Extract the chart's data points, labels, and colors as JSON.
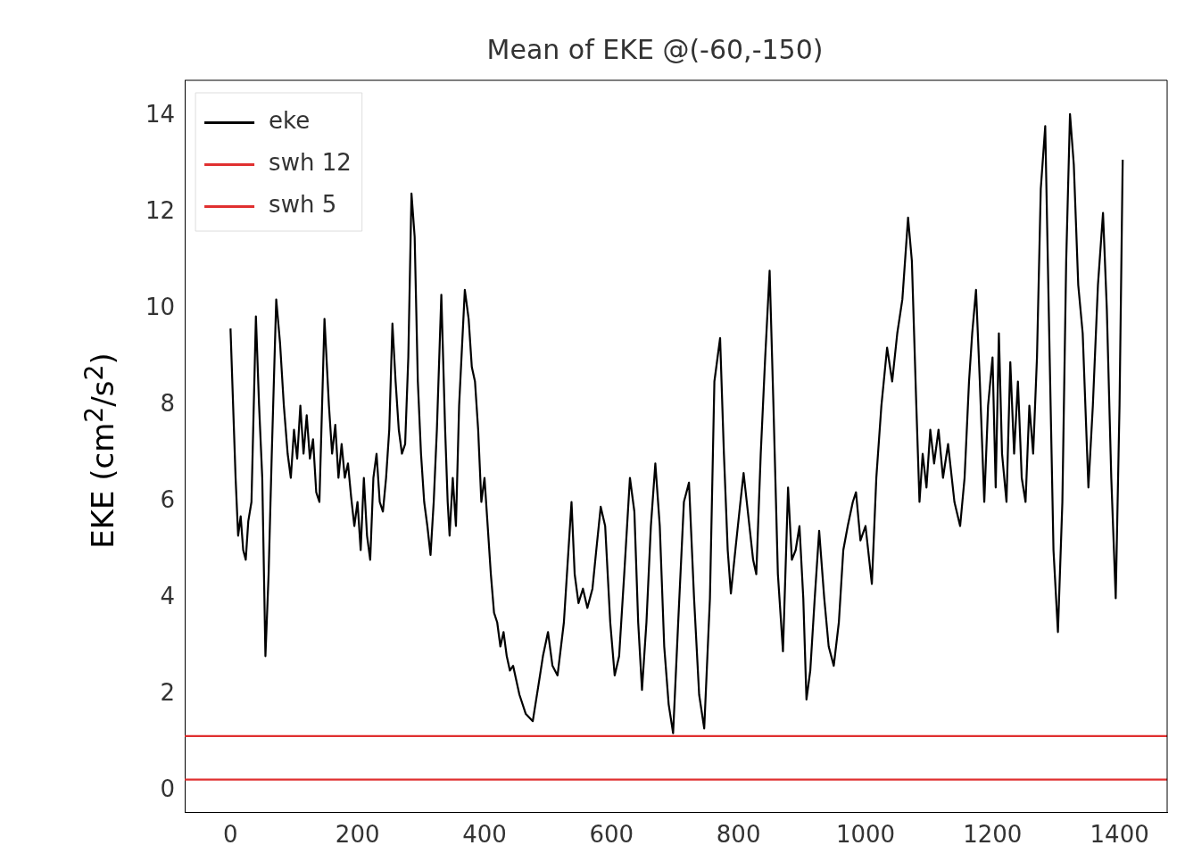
{
  "chart_data": {
    "type": "line",
    "title": "Mean of EKE @(-60,-150)",
    "ylabel": "EKE (cm$^{2}$/s$^{2}$)",
    "xlim": [
      -72,
      1475
    ],
    "ylim": [
      -0.45,
      14.75
    ],
    "xticks": [
      0,
      200,
      400,
      600,
      800,
      1000,
      1200,
      1400
    ],
    "yticks": [
      0,
      2,
      4,
      6,
      8,
      10,
      12,
      14
    ],
    "legend": "top left",
    "grid": false,
    "series": [
      {
        "name": "eke",
        "color": "#000000",
        "x": [
          0,
          8,
          12,
          16,
          20,
          24,
          28,
          33,
          40,
          45,
          50,
          55,
          60,
          65,
          72,
          78,
          84,
          90,
          95,
          100,
          105,
          110,
          115,
          120,
          125,
          130,
          135,
          140,
          148,
          155,
          160,
          165,
          170,
          175,
          180,
          185,
          190,
          195,
          200,
          205,
          210,
          215,
          220,
          225,
          230,
          235,
          240,
          245,
          250,
          255,
          260,
          265,
          270,
          275,
          280,
          285,
          290,
          295,
          300,
          305,
          310,
          315,
          320,
          325,
          332,
          338,
          342,
          345,
          350,
          355,
          360,
          369,
          375,
          380,
          385,
          390,
          395,
          400,
          405,
          410,
          415,
          420,
          425,
          430,
          435,
          440,
          445,
          455,
          465,
          476,
          485,
          492,
          500,
          507,
          515,
          525,
          537,
          542,
          548,
          555,
          562,
          570,
          576,
          583,
          590,
          598,
          605,
          612,
          620,
          629,
          636,
          642,
          648,
          655,
          662,
          669,
          676,
          683,
          690,
          697,
          705,
          714,
          722,
          730,
          738,
          746,
          755,
          762,
          767,
          771,
          777,
          783,
          788,
          795,
          803,
          808,
          813,
          818,
          823,
          828,
          835,
          842,
          849,
          855,
          862,
          870,
          875,
          878,
          884,
          890,
          896,
          902,
          907,
          913,
          920,
          927,
          935,
          942,
          950,
          958,
          965,
          972,
          980,
          985,
          992,
          1000,
          1010,
          1017,
          1025,
          1034,
          1042,
          1050,
          1058,
          1067,
          1073,
          1080,
          1085,
          1090,
          1096,
          1102,
          1108,
          1115,
          1122,
          1130,
          1140,
          1149,
          1156,
          1163,
          1168,
          1174,
          1180,
          1187,
          1193,
          1200,
          1205,
          1210,
          1215,
          1222,
          1228,
          1234,
          1240,
          1246,
          1252,
          1258,
          1264,
          1270,
          1276,
          1283,
          1290,
          1296,
          1303,
          1310,
          1316,
          1322,
          1328,
          1335,
          1342,
          1351,
          1358,
          1366,
          1374,
          1380,
          1387,
          1394,
          1400,
          1405
        ],
        "values": [
          9.6,
          6.5,
          5.3,
          5.7,
          5.0,
          4.8,
          5.6,
          6.0,
          9.85,
          8.0,
          6.5,
          2.8,
          4.5,
          7.0,
          10.2,
          9.3,
          8.0,
          7.0,
          6.5,
          7.5,
          6.9,
          8.0,
          7.0,
          7.8,
          6.9,
          7.3,
          6.2,
          6.0,
          9.8,
          8.0,
          7.0,
          7.6,
          6.5,
          7.2,
          6.5,
          6.8,
          6.1,
          5.5,
          6.0,
          5.0,
          6.5,
          5.3,
          4.8,
          6.5,
          7.0,
          6.0,
          5.8,
          6.5,
          7.5,
          9.7,
          8.5,
          7.5,
          7.0,
          7.2,
          9.0,
          12.4,
          11.5,
          8.5,
          7.0,
          6.0,
          5.5,
          4.9,
          6.0,
          7.5,
          10.3,
          7.5,
          6.0,
          5.3,
          6.5,
          5.5,
          8.0,
          10.4,
          9.8,
          8.8,
          8.5,
          7.5,
          6.0,
          6.5,
          5.5,
          4.5,
          3.7,
          3.5,
          3.0,
          3.3,
          2.8,
          2.5,
          2.6,
          2.0,
          1.6,
          1.45,
          2.2,
          2.8,
          3.3,
          2.6,
          2.4,
          3.5,
          6.0,
          4.5,
          3.9,
          4.2,
          3.8,
          4.2,
          5.0,
          5.9,
          5.5,
          3.5,
          2.4,
          2.8,
          4.5,
          6.5,
          5.8,
          3.5,
          2.1,
          3.5,
          5.5,
          6.8,
          5.5,
          3.0,
          1.8,
          1.2,
          3.5,
          6.0,
          6.4,
          4.0,
          2.0,
          1.3,
          4.0,
          8.5,
          9.0,
          9.4,
          7.0,
          5.0,
          4.1,
          5.0,
          6.0,
          6.6,
          6.0,
          5.4,
          4.8,
          4.5,
          7.0,
          9.0,
          10.8,
          8.0,
          4.5,
          2.9,
          5.0,
          6.3,
          4.8,
          5.0,
          5.5,
          4.0,
          1.9,
          2.5,
          4.0,
          5.4,
          4.0,
          3.0,
          2.6,
          3.5,
          5.0,
          5.5,
          6.0,
          6.2,
          5.2,
          5.5,
          4.3,
          6.5,
          8.0,
          9.2,
          8.5,
          9.5,
          10.2,
          11.9,
          11.0,
          8.0,
          6.0,
          7.0,
          6.3,
          7.5,
          6.8,
          7.5,
          6.5,
          7.2,
          6.0,
          5.5,
          6.5,
          8.5,
          9.5,
          10.4,
          8.5,
          6.0,
          8.0,
          9.0,
          6.3,
          9.5,
          7.0,
          6.0,
          8.9,
          7.0,
          8.5,
          6.5,
          6.0,
          8.0,
          7.0,
          9.0,
          12.5,
          13.8,
          9.0,
          5.0,
          3.3,
          6.0,
          11.0,
          14.05,
          13.0,
          10.5,
          9.5,
          6.3,
          8.0,
          10.5,
          12.0,
          10.0,
          6.5,
          4.0,
          8.0,
          13.1
        ]
      },
      {
        "name": "swh 12",
        "color": "#e03030",
        "x": [
          -72,
          1475
        ],
        "values": [
          1.14,
          1.14
        ]
      },
      {
        "name": "swh 5",
        "color": "#e03030",
        "x": [
          -72,
          1475
        ],
        "values": [
          0.24,
          0.24
        ]
      }
    ]
  }
}
